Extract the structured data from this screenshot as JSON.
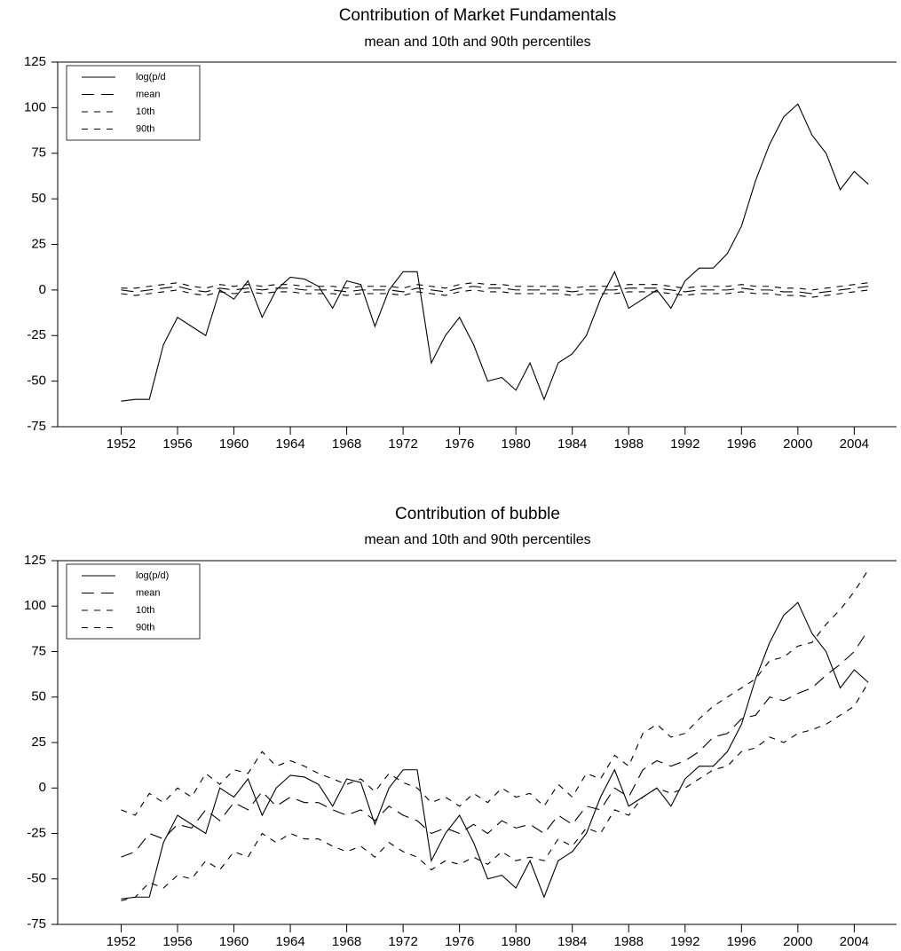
{
  "chart_data": [
    {
      "type": "line",
      "title": "Contribution of Market Fundamentals",
      "subtitle": "mean and 10th and 90th percentiles",
      "x": [
        1952,
        1953,
        1954,
        1955,
        1956,
        1957,
        1958,
        1959,
        1960,
        1961,
        1962,
        1963,
        1964,
        1965,
        1966,
        1967,
        1968,
        1969,
        1970,
        1971,
        1972,
        1973,
        1974,
        1975,
        1976,
        1977,
        1978,
        1979,
        1980,
        1981,
        1982,
        1983,
        1984,
        1985,
        1986,
        1987,
        1988,
        1989,
        1990,
        1991,
        1992,
        1993,
        1994,
        1995,
        1996,
        1997,
        1998,
        1999,
        2000,
        2001,
        2002,
        2003,
        2004,
        2005
      ],
      "series": [
        {
          "name": "log(p/d",
          "color": "#000000",
          "dash": "solid",
          "values": [
            -61,
            -60,
            -60,
            -30,
            -15,
            -20,
            -25,
            0,
            -5,
            5,
            -15,
            0,
            7,
            6,
            2,
            -10,
            5,
            3,
            -20,
            0,
            10,
            10,
            -40,
            -25,
            -15,
            -30,
            -50,
            -48,
            -55,
            -40,
            -60,
            -40,
            -35,
            -25,
            -5,
            10,
            -10,
            -5,
            0,
            -10,
            5,
            12,
            12,
            20,
            35,
            60,
            80,
            95,
            102,
            85,
            75,
            55,
            65,
            58
          ]
        },
        {
          "name": "mean",
          "color": "#000000",
          "dash": "long",
          "values": [
            0,
            -1,
            0,
            1,
            2,
            0,
            -1,
            1,
            0,
            1,
            0,
            1,
            1,
            0,
            0,
            0,
            -1,
            0,
            0,
            0,
            -1,
            1,
            0,
            -1,
            1,
            2,
            1,
            1,
            0,
            0,
            0,
            0,
            -1,
            0,
            0,
            0,
            1,
            1,
            1,
            0,
            -1,
            0,
            0,
            0,
            1,
            0,
            0,
            -1,
            -1,
            -2,
            -1,
            0,
            1,
            2
          ]
        },
        {
          "name": "10th",
          "color": "#000000",
          "dash": "short",
          "values": [
            -2,
            -3,
            -2,
            -1,
            0,
            -2,
            -3,
            -1,
            -2,
            -1,
            -2,
            -1,
            -1,
            -2,
            -2,
            -2,
            -3,
            -2,
            -2,
            -2,
            -3,
            -1,
            -2,
            -3,
            -1,
            0,
            -1,
            -1,
            -2,
            -2,
            -2,
            -2,
            -3,
            -2,
            -2,
            -2,
            -1,
            -1,
            -1,
            -2,
            -3,
            -2,
            -2,
            -2,
            -1,
            -2,
            -2,
            -3,
            -3,
            -4,
            -3,
            -2,
            -1,
            0
          ]
        },
        {
          "name": "90th",
          "color": "#000000",
          "dash": "short",
          "values": [
            1,
            1,
            2,
            3,
            4,
            2,
            1,
            3,
            2,
            3,
            2,
            3,
            3,
            2,
            2,
            2,
            1,
            2,
            2,
            2,
            1,
            3,
            2,
            1,
            3,
            4,
            3,
            3,
            2,
            2,
            2,
            2,
            1,
            2,
            2,
            2,
            3,
            3,
            3,
            2,
            1,
            2,
            2,
            2,
            3,
            2,
            2,
            1,
            1,
            0,
            1,
            2,
            3,
            4
          ]
        }
      ],
      "xlim": [
        1947.5,
        2007
      ],
      "xticks": [
        1952,
        1956,
        1960,
        1964,
        1968,
        1972,
        1976,
        1980,
        1984,
        1988,
        1992,
        1996,
        2000,
        2004
      ],
      "ylim": [
        -75,
        125
      ],
      "yticks": [
        -75,
        -50,
        -25,
        0,
        25,
        50,
        75,
        100,
        125
      ],
      "legend": "upper left"
    },
    {
      "type": "line",
      "title": "Contribution of bubble",
      "subtitle": "mean and 10th and 90th percentiles",
      "x": [
        1952,
        1953,
        1954,
        1955,
        1956,
        1957,
        1958,
        1959,
        1960,
        1961,
        1962,
        1963,
        1964,
        1965,
        1966,
        1967,
        1968,
        1969,
        1970,
        1971,
        1972,
        1973,
        1974,
        1975,
        1976,
        1977,
        1978,
        1979,
        1980,
        1981,
        1982,
        1983,
        1984,
        1985,
        1986,
        1987,
        1988,
        1989,
        1990,
        1991,
        1992,
        1993,
        1994,
        1995,
        1996,
        1997,
        1998,
        1999,
        2000,
        2001,
        2002,
        2003,
        2004,
        2005
      ],
      "series": [
        {
          "name": "log(p/d)",
          "color": "#000000",
          "dash": "solid",
          "values": [
            -61,
            -60,
            -60,
            -30,
            -15,
            -20,
            -25,
            0,
            -5,
            5,
            -15,
            0,
            7,
            6,
            2,
            -10,
            5,
            3,
            -20,
            0,
            10,
            10,
            -40,
            -25,
            -15,
            -30,
            -50,
            -48,
            -55,
            -40,
            -60,
            -40,
            -35,
            -25,
            -5,
            10,
            -10,
            -5,
            0,
            -10,
            5,
            12,
            12,
            20,
            35,
            60,
            80,
            95,
            102,
            85,
            75,
            55,
            65,
            58
          ]
        },
        {
          "name": "mean",
          "color": "#000000",
          "dash": "long",
          "values": [
            -38,
            -35,
            -25,
            -28,
            -20,
            -22,
            -12,
            -18,
            -8,
            -12,
            -2,
            -10,
            -5,
            -8,
            -8,
            -12,
            -15,
            -12,
            -18,
            -10,
            -15,
            -18,
            -25,
            -22,
            -25,
            -20,
            -25,
            -18,
            -22,
            -20,
            -25,
            -15,
            -20,
            -10,
            -12,
            0,
            -5,
            10,
            15,
            12,
            15,
            20,
            28,
            30,
            38,
            40,
            50,
            48,
            52,
            55,
            62,
            68,
            75,
            87
          ]
        },
        {
          "name": "10th",
          "color": "#000000",
          "dash": "short",
          "values": [
            -62,
            -60,
            -52,
            -55,
            -48,
            -50,
            -40,
            -45,
            -35,
            -38,
            -25,
            -30,
            -25,
            -28,
            -28,
            -32,
            -35,
            -32,
            -38,
            -30,
            -35,
            -38,
            -45,
            -40,
            -42,
            -38,
            -42,
            -35,
            -40,
            -38,
            -40,
            -28,
            -32,
            -22,
            -25,
            -12,
            -15,
            -5,
            0,
            -3,
            0,
            5,
            10,
            12,
            20,
            22,
            28,
            25,
            30,
            32,
            35,
            40,
            45,
            58
          ]
        },
        {
          "name": "90th",
          "color": "#000000",
          "dash": "short",
          "values": [
            -12,
            -15,
            -3,
            -8,
            0,
            -5,
            8,
            2,
            10,
            8,
            20,
            12,
            15,
            12,
            8,
            5,
            2,
            5,
            -2,
            8,
            3,
            0,
            -8,
            -5,
            -10,
            -3,
            -8,
            0,
            -5,
            -3,
            -10,
            2,
            -5,
            8,
            5,
            18,
            12,
            30,
            35,
            28,
            30,
            38,
            45,
            50,
            55,
            60,
            70,
            72,
            78,
            80,
            90,
            98,
            108,
            120
          ]
        }
      ],
      "xlim": [
        1947.5,
        2007
      ],
      "xticks": [
        1952,
        1956,
        1960,
        1964,
        1968,
        1972,
        1976,
        1980,
        1984,
        1988,
        1992,
        1996,
        2000,
        2004
      ],
      "ylim": [
        -75,
        125
      ],
      "yticks": [
        -75,
        -50,
        -25,
        0,
        25,
        50,
        75,
        100,
        125
      ],
      "legend": "upper left"
    }
  ]
}
